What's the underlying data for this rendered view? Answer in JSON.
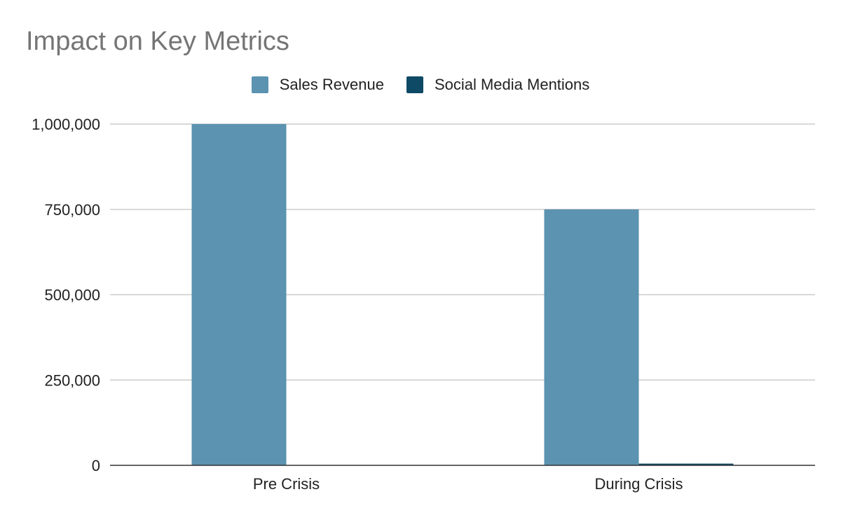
{
  "chart_data": {
    "type": "bar",
    "title": "Impact on Key Metrics",
    "xlabel": "",
    "ylabel": "",
    "categories": [
      "Pre Crisis",
      "During Crisis"
    ],
    "series": [
      {
        "name": "Sales Revenue",
        "color": "#5b93b0",
        "values": [
          1000000,
          750000
        ]
      },
      {
        "name": "Social Media Mentions",
        "color": "#0e4965",
        "values": [
          500,
          5000
        ]
      }
    ],
    "ylim": [
      0,
      1000000
    ],
    "yticks": [
      0,
      250000,
      500000,
      750000,
      1000000
    ],
    "ytick_labels": [
      "0",
      "250,000",
      "500,000",
      "750,000",
      "1,000,000"
    ],
    "grid": true,
    "legend_position": "top-center"
  }
}
